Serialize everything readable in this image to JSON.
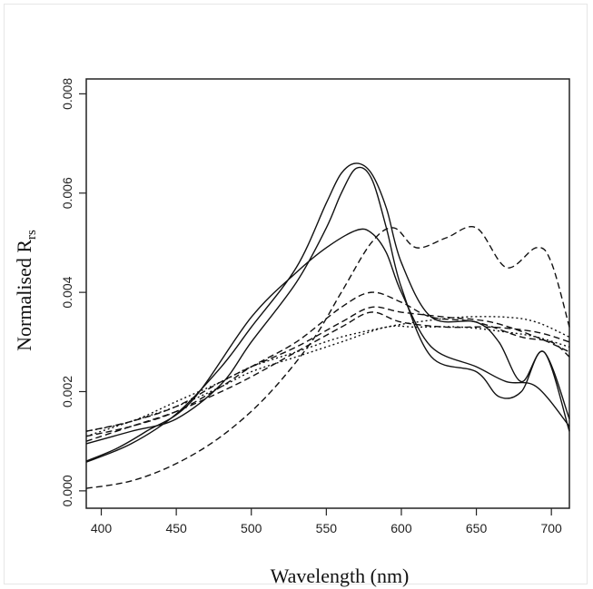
{
  "chart_data": {
    "type": "line",
    "xlabel": "Wavelength (nm)",
    "ylabel": "Normalised R",
    "ylabel_sub": "rs",
    "xlim": [
      390,
      712
    ],
    "ylim": [
      -0.00035,
      0.0083
    ],
    "xticks": [
      400,
      450,
      500,
      550,
      600,
      650,
      700
    ],
    "yticks": [
      0.0,
      0.002,
      0.004,
      0.006,
      0.008
    ],
    "ytick_labels": [
      "0.000",
      "0.002",
      "0.004",
      "0.006",
      "0.008"
    ],
    "grid": false,
    "series": [
      {
        "style": "solid",
        "x": [
          390,
          420,
          450,
          480,
          500,
          530,
          550,
          560,
          570,
          580,
          590,
          600,
          620,
          650,
          665,
          680,
          695,
          712
        ],
        "y": [
          0.00058,
          0.00095,
          0.00155,
          0.0025,
          0.0033,
          0.0045,
          0.0058,
          0.0064,
          0.0066,
          0.0064,
          0.0057,
          0.0046,
          0.0035,
          0.0034,
          0.003,
          0.0022,
          0.0028,
          0.00145
        ]
      },
      {
        "style": "solid",
        "x": [
          390,
          420,
          450,
          480,
          500,
          530,
          550,
          560,
          570,
          580,
          590,
          600,
          620,
          650,
          665,
          680,
          695,
          712
        ],
        "y": [
          0.00095,
          0.0012,
          0.00145,
          0.00215,
          0.003,
          0.0042,
          0.0053,
          0.006,
          0.0065,
          0.0063,
          0.0053,
          0.0041,
          0.0027,
          0.0024,
          0.0019,
          0.002,
          0.0028,
          0.0012
        ]
      },
      {
        "style": "solid",
        "x": [
          390,
          410,
          430,
          460,
          500,
          530,
          550,
          570,
          580,
          590,
          600,
          620,
          650,
          670,
          690,
          712
        ],
        "y": [
          0.0006,
          0.00085,
          0.0012,
          0.0018,
          0.0035,
          0.0044,
          0.0049,
          0.00525,
          0.0052,
          0.0048,
          0.004,
          0.0029,
          0.0025,
          0.0022,
          0.0021,
          0.0013
        ]
      },
      {
        "style": "dashed",
        "x": [
          390,
          420,
          450,
          480,
          510,
          540,
          560,
          580,
          595,
          610,
          630,
          650,
          670,
          690,
          700,
          712
        ],
        "y": [
          5e-05,
          0.0002,
          0.00055,
          0.0011,
          0.0019,
          0.003,
          0.004,
          0.005,
          0.0053,
          0.0049,
          0.0051,
          0.0053,
          0.0045,
          0.0049,
          0.0046,
          0.0033
        ]
      },
      {
        "style": "dashed",
        "x": [
          390,
          420,
          450,
          480,
          500,
          530,
          560,
          580,
          600,
          620,
          650,
          680,
          700,
          712
        ],
        "y": [
          0.0011,
          0.0013,
          0.0016,
          0.0021,
          0.0025,
          0.003,
          0.0037,
          0.004,
          0.0038,
          0.0035,
          0.0034,
          0.0031,
          0.003,
          0.0027
        ]
      },
      {
        "style": "dashed",
        "x": [
          390,
          420,
          450,
          480,
          500,
          530,
          560,
          580,
          600,
          630,
          660,
          690,
          712
        ],
        "y": [
          0.0012,
          0.0014,
          0.0017,
          0.0022,
          0.0025,
          0.0029,
          0.0034,
          0.0037,
          0.0036,
          0.0035,
          0.0034,
          0.0031,
          0.0028
        ]
      },
      {
        "style": "dashed",
        "x": [
          390,
          420,
          450,
          480,
          500,
          530,
          560,
          580,
          600,
          630,
          660,
          690,
          712
        ],
        "y": [
          0.001,
          0.0013,
          0.0016,
          0.002,
          0.0023,
          0.0028,
          0.0033,
          0.0036,
          0.0034,
          0.0033,
          0.0033,
          0.0032,
          0.003
        ]
      },
      {
        "style": "dotted",
        "x": [
          390,
          420,
          450,
          480,
          500,
          530,
          560,
          590,
          610,
          640,
          670,
          690,
          712
        ],
        "y": [
          0.0012,
          0.0014,
          0.0018,
          0.0022,
          0.0025,
          0.0028,
          0.0031,
          0.0033,
          0.0034,
          0.0035,
          0.0035,
          0.0034,
          0.0031
        ]
      },
      {
        "style": "dotted",
        "x": [
          390,
          420,
          450,
          480,
          500,
          530,
          560,
          590,
          610,
          640,
          670,
          690,
          712
        ],
        "y": [
          0.0011,
          0.0014,
          0.0017,
          0.0021,
          0.0024,
          0.0027,
          0.003,
          0.0033,
          0.0033,
          0.0033,
          0.0032,
          0.0031,
          0.0029
        ]
      }
    ]
  }
}
